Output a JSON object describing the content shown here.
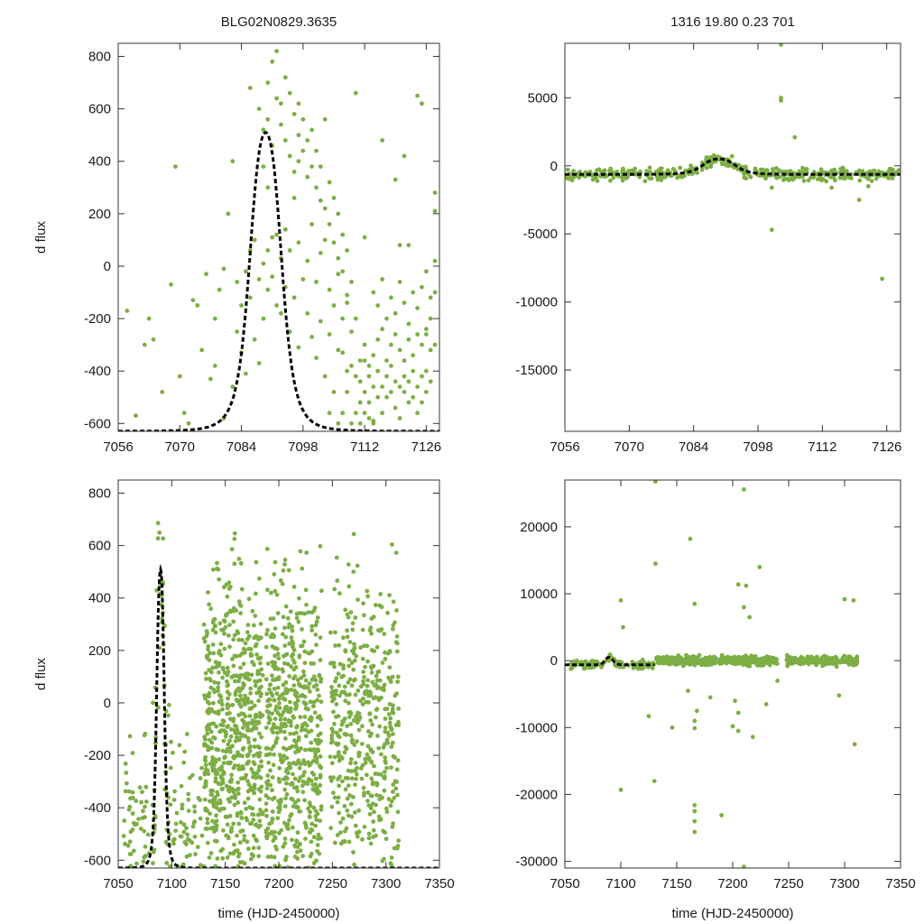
{
  "colors": {
    "points": "#7dae45",
    "model": "#000000",
    "axis": "#333333",
    "text": "#1a1a1a"
  },
  "chart_data": [
    {
      "id": "top-left",
      "type": "scatter",
      "title": "BLG02N0829.3635",
      "xlabel": "",
      "ylabel": "d flux",
      "xlim": [
        7056,
        7129
      ],
      "ylim": [
        -630,
        850
      ],
      "xticks": [
        7056,
        7070,
        7084,
        7098,
        7112,
        7126
      ],
      "yticks": [
        -600,
        -400,
        -200,
        0,
        200,
        400,
        600,
        800
      ],
      "model": {
        "peak_time": 7089.5,
        "peak_flux": 510,
        "baseline": -630,
        "width": 4.0
      },
      "points": [
        [
          7058,
          -170
        ],
        [
          7060,
          -570
        ],
        [
          7062,
          -300
        ],
        [
          7063,
          -200
        ],
        [
          7064,
          -280
        ],
        [
          7066,
          -480
        ],
        [
          7068,
          -70
        ],
        [
          7069,
          380
        ],
        [
          7070,
          -420
        ],
        [
          7071,
          -560
        ],
        [
          7072,
          -600
        ],
        [
          7073,
          -130
        ],
        [
          7074,
          -150
        ],
        [
          7075,
          -320
        ],
        [
          7076,
          -30
        ],
        [
          7077,
          -430
        ],
        [
          7078,
          -200
        ],
        [
          7078,
          -380
        ],
        [
          7079,
          -90
        ],
        [
          7080,
          -10
        ],
        [
          7080,
          -580
        ],
        [
          7081,
          200
        ],
        [
          7082,
          -460
        ],
        [
          7082,
          400
        ],
        [
          7083,
          -60
        ],
        [
          7083,
          -250
        ],
        [
          7084,
          -330
        ],
        [
          7084,
          -150
        ],
        [
          7085,
          -20
        ],
        [
          7085,
          -410
        ],
        [
          7086,
          60
        ],
        [
          7086,
          -120
        ],
        [
          7086,
          680
        ],
        [
          7087,
          100
        ],
        [
          7087,
          -280
        ],
        [
          7088,
          -50
        ],
        [
          7088,
          -370
        ],
        [
          7089,
          10
        ],
        [
          7089,
          -200
        ],
        [
          7090,
          -90
        ],
        [
          7090,
          60
        ],
        [
          7091,
          110
        ],
        [
          7091,
          -40
        ],
        [
          7092,
          -150
        ],
        [
          7092,
          120
        ],
        [
          7093,
          30
        ],
        [
          7093,
          -180
        ],
        [
          7094,
          -80
        ],
        [
          7094,
          140
        ],
        [
          7095,
          -250
        ],
        [
          7095,
          60
        ],
        [
          7096,
          260
        ],
        [
          7096,
          -120
        ],
        [
          7097,
          90
        ],
        [
          7097,
          -310
        ],
        [
          7097,
          400
        ],
        [
          7098,
          -50
        ],
        [
          7099,
          -180
        ],
        [
          7099,
          20
        ],
        [
          7100,
          -270
        ],
        [
          7100,
          160
        ],
        [
          7101,
          -60
        ],
        [
          7101,
          -350
        ],
        [
          7102,
          50
        ],
        [
          7102,
          -210
        ],
        [
          7103,
          -420
        ],
        [
          7103,
          100
        ],
        [
          7104,
          -90
        ],
        [
          7104,
          -260
        ],
        [
          7105,
          -150
        ],
        [
          7105,
          -480
        ],
        [
          7106,
          -30
        ],
        [
          7106,
          -320
        ],
        [
          7107,
          -200
        ],
        [
          7107,
          -560
        ],
        [
          7108,
          -110
        ],
        [
          7108,
          -400
        ],
        [
          7109,
          -250
        ],
        [
          7109,
          -600
        ],
        [
          7088,
          600
        ],
        [
          7089,
          520
        ],
        [
          7090,
          700
        ],
        [
          7091,
          780
        ],
        [
          7092,
          820
        ],
        [
          7090,
          560
        ],
        [
          7093,
          620
        ],
        [
          7091,
          460
        ],
        [
          7089,
          380
        ],
        [
          7090,
          300
        ],
        [
          7092,
          640
        ],
        [
          7093,
          540
        ],
        [
          7094,
          720
        ],
        [
          7094,
          480
        ],
        [
          7095,
          660
        ],
        [
          7095,
          420
        ],
        [
          7096,
          580
        ],
        [
          7096,
          360
        ],
        [
          7097,
          620
        ],
        [
          7097,
          500
        ],
        [
          7098,
          560
        ],
        [
          7098,
          440
        ],
        [
          7099,
          480
        ],
        [
          7099,
          340
        ],
        [
          7100,
          380
        ],
        [
          7100,
          520
        ],
        [
          7101,
          300
        ],
        [
          7101,
          440
        ],
        [
          7102,
          250
        ],
        [
          7102,
          380
        ],
        [
          7103,
          560
        ],
        [
          7103,
          220
        ],
        [
          7104,
          320
        ],
        [
          7104,
          160
        ],
        [
          7105,
          260
        ],
        [
          7105,
          90
        ],
        [
          7106,
          200
        ],
        [
          7106,
          30
        ],
        [
          7107,
          120
        ],
        [
          7107,
          -20
        ],
        [
          7108,
          60
        ],
        [
          7108,
          -140
        ],
        [
          7109,
          -60
        ],
        [
          7110,
          -200
        ],
        [
          7110,
          -420
        ],
        [
          7111,
          -520
        ],
        [
          7111,
          -360
        ],
        [
          7111,
          -600
        ],
        [
          7112,
          -300
        ],
        [
          7112,
          -480
        ],
        [
          7112,
          -560
        ],
        [
          7113,
          -420
        ],
        [
          7113,
          -380
        ],
        [
          7113,
          -520
        ],
        [
          7114,
          -340
        ],
        [
          7114,
          -460
        ],
        [
          7114,
          -590
        ],
        [
          7115,
          -280
        ],
        [
          7115,
          -400
        ],
        [
          7115,
          -500
        ],
        [
          7116,
          -240
        ],
        [
          7116,
          -460
        ],
        [
          7116,
          -560
        ],
        [
          7117,
          -360
        ],
        [
          7117,
          -500
        ],
        [
          7117,
          -420
        ],
        [
          7118,
          -300
        ],
        [
          7118,
          -480
        ],
        [
          7118,
          -380
        ],
        [
          7119,
          -260
        ],
        [
          7119,
          -440
        ],
        [
          7119,
          -540
        ],
        [
          7120,
          -320
        ],
        [
          7120,
          -460
        ],
        [
          7120,
          -580
        ],
        [
          7121,
          -360
        ],
        [
          7121,
          -480
        ],
        [
          7121,
          -420
        ],
        [
          7122,
          -280
        ],
        [
          7122,
          -440
        ],
        [
          7122,
          -520
        ],
        [
          7123,
          -340
        ],
        [
          7123,
          -500
        ],
        [
          7123,
          -400
        ],
        [
          7124,
          -260
        ],
        [
          7124,
          -460
        ],
        [
          7124,
          -560
        ],
        [
          7125,
          -300
        ],
        [
          7125,
          -420
        ],
        [
          7125,
          -520
        ],
        [
          7126,
          -240
        ],
        [
          7126,
          -400
        ],
        [
          7126,
          -480
        ],
        [
          7127,
          -320
        ],
        [
          7127,
          -440
        ],
        [
          7127,
          -200
        ],
        [
          7128,
          -100
        ],
        [
          7128,
          -300
        ],
        [
          7128,
          20
        ],
        [
          7114,
          -100
        ],
        [
          7115,
          -150
        ],
        [
          7116,
          -50
        ],
        [
          7117,
          -200
        ],
        [
          7118,
          -120
        ],
        [
          7119,
          -180
        ],
        [
          7120,
          -60
        ],
        [
          7121,
          -140
        ],
        [
          7122,
          -220
        ],
        [
          7123,
          -100
        ],
        [
          7124,
          -160
        ],
        [
          7125,
          -80
        ],
        [
          7126,
          -260
        ],
        [
          7127,
          -120
        ],
        [
          7116,
          480
        ],
        [
          7120,
          80
        ],
        [
          7121,
          420
        ],
        [
          7124,
          650
        ],
        [
          7125,
          620
        ],
        [
          7119,
          330
        ],
        [
          7122,
          80
        ],
        [
          7126,
          -20
        ],
        [
          7128,
          210
        ],
        [
          7128,
          280
        ],
        [
          7110,
          -560
        ],
        [
          7111,
          -440
        ],
        [
          7112,
          -360
        ],
        [
          7113,
          -580
        ],
        [
          7114,
          -600
        ],
        [
          7112,
          110
        ],
        [
          7110,
          660
        ],
        [
          7104,
          -560
        ],
        [
          7106,
          -600
        ],
        [
          7108,
          -480
        ],
        [
          7107,
          -330
        ],
        [
          7109,
          -380
        ]
      ]
    },
    {
      "id": "top-right",
      "type": "scatter",
      "title": "1316   19.80   0.23   701",
      "xlabel": "",
      "ylabel": "",
      "xlim": [
        7056,
        7129
      ],
      "ylim": [
        -19500,
        9000
      ],
      "xticks": [
        7056,
        7070,
        7084,
        7098,
        7112,
        7126
      ],
      "yticks": [
        -15000,
        -10000,
        -5000,
        0,
        5000
      ],
      "model": {
        "peak_time": 7089.5,
        "peak_flux": 510,
        "baseline": -630,
        "width": 4.0
      },
      "band_noise": 300,
      "outliers": [
        [
          7103,
          8900
        ],
        [
          7103,
          5000
        ],
        [
          7103,
          4800
        ],
        [
          7101,
          -4700
        ],
        [
          7106,
          2100
        ],
        [
          7101,
          -1600
        ],
        [
          7125,
          -8300
        ],
        [
          7120,
          -2500
        ],
        [
          7114,
          -1600
        ],
        [
          7122,
          -1500
        ]
      ]
    },
    {
      "id": "bottom-left",
      "type": "scatter",
      "title": "",
      "xlabel": "time (HJD-2450000)",
      "ylabel": "d flux",
      "xlim": [
        7050,
        7350
      ],
      "ylim": [
        -630,
        850
      ],
      "xticks": [
        7050,
        7100,
        7150,
        7200,
        7250,
        7300,
        7350
      ],
      "yticks": [
        -600,
        -400,
        -200,
        0,
        200,
        400,
        600,
        800
      ],
      "model": {
        "peak_time": 7089.5,
        "peak_flux": 510,
        "baseline": -630,
        "width": 4.0
      },
      "segments": [
        [
          7055,
          7130,
          260
        ],
        [
          7130,
          7185,
          640
        ],
        [
          7188,
          7240,
          560
        ],
        [
          7248,
          7312,
          460
        ]
      ]
    },
    {
      "id": "bottom-right",
      "type": "scatter",
      "title": "",
      "xlabel": "time (HJD-2450000)",
      "ylabel": "",
      "xlim": [
        7050,
        7350
      ],
      "ylim": [
        -31000,
        27000
      ],
      "xticks": [
        7050,
        7100,
        7150,
        7200,
        7250,
        7300,
        7350
      ],
      "yticks": [
        -30000,
        -20000,
        -10000,
        0,
        10000,
        20000
      ],
      "model": {
        "peak_time": 7089.5,
        "peak_flux": 510,
        "baseline": -630,
        "width": 4.0,
        "end_time": 7130
      },
      "band_noise": 450,
      "segments": [
        [
          7055,
          7130,
          120
        ],
        [
          7132,
          7185,
          260
        ],
        [
          7188,
          7240,
          240
        ],
        [
          7248,
          7312,
          200
        ]
      ],
      "outliers": [
        [
          7131,
          26800
        ],
        [
          7210,
          25600
        ],
        [
          7162,
          18200
        ],
        [
          7131,
          14500
        ],
        [
          7224,
          14000
        ],
        [
          7205,
          11400
        ],
        [
          7212,
          11200
        ],
        [
          7100,
          9000
        ],
        [
          7166,
          8500
        ],
        [
          7210,
          8000
        ],
        [
          7300,
          9200
        ],
        [
          7308,
          9000
        ],
        [
          7102,
          5000
        ],
        [
          7215,
          6500
        ],
        [
          7100,
          -19300
        ],
        [
          7130,
          -18000
        ],
        [
          7166,
          -21600
        ],
        [
          7166,
          -22500
        ],
        [
          7166,
          -24000
        ],
        [
          7166,
          -25600
        ],
        [
          7190,
          -23100
        ],
        [
          7210,
          -30800
        ],
        [
          7166,
          -9000
        ],
        [
          7166,
          -10100
        ],
        [
          7168,
          -7500
        ],
        [
          7200,
          -9800
        ],
        [
          7205,
          -10500
        ],
        [
          7218,
          -11400
        ],
        [
          7146,
          -10000
        ],
        [
          7309,
          -12500
        ],
        [
          7295,
          -5200
        ],
        [
          7125,
          -8300
        ],
        [
          7240,
          -3000
        ],
        [
          7230,
          -6500
        ],
        [
          7160,
          -4500
        ],
        [
          7180,
          -5500
        ],
        [
          7202,
          -6000
        ],
        [
          7205,
          -7800
        ]
      ]
    }
  ]
}
